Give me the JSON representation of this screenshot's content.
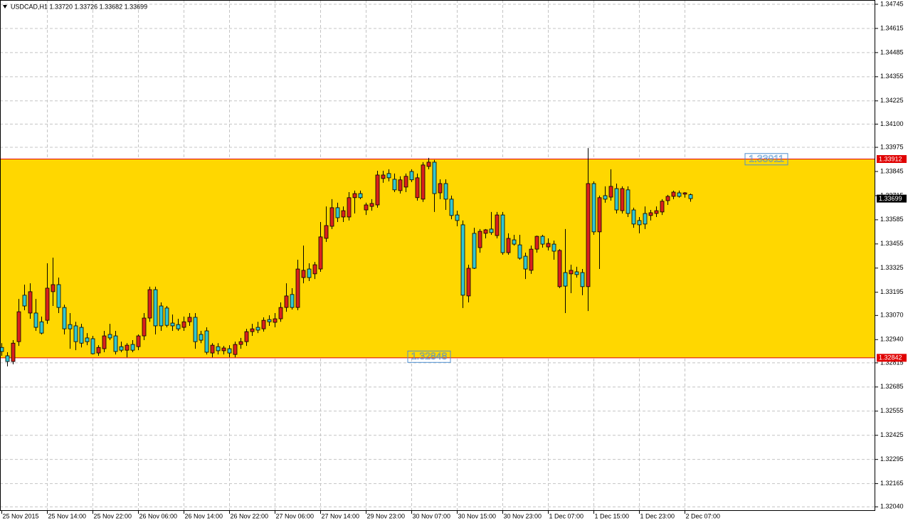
{
  "chart_data": {
    "type": "candlestick",
    "title": "USDCAD,H1  1.33720 1.33726 1.33682 1.33699",
    "up_color": "#d9211c",
    "down_color": "#33c6cf",
    "wick_color": "#000000",
    "grid": true,
    "zone": {
      "from": 1.32842,
      "to": 1.33912,
      "color": "#ffd700",
      "line_color": "#e00000"
    },
    "level_labels": [
      1.33911,
      1.32848
    ],
    "price_tags": [
      {
        "value": 1.33912,
        "color": "#e00000"
      },
      {
        "value": 1.33699,
        "color": "#000000"
      },
      {
        "value": 1.32842,
        "color": "#e00000"
      }
    ],
    "xlim": [
      -0.25,
      153.5
    ],
    "xticks": [
      {
        "value": 0,
        "label": "25 Nov 2015"
      },
      {
        "value": 8,
        "label": "25 Nov 14:00"
      },
      {
        "value": 16,
        "label": "25 Nov 22:00"
      },
      {
        "value": 24,
        "label": "26 Nov 06:00"
      },
      {
        "value": 32,
        "label": "26 Nov 14:00"
      },
      {
        "value": 40,
        "label": "26 Nov 22:00"
      },
      {
        "value": 48,
        "label": "27 Nov 06:00"
      },
      {
        "value": 56,
        "label": "27 Nov 14:00"
      },
      {
        "value": 64,
        "label": "29 Nov 23:00"
      },
      {
        "value": 72,
        "label": "30 Nov 07:00"
      },
      {
        "value": 80,
        "label": "30 Nov 15:00"
      },
      {
        "value": 88,
        "label": "30 Nov 23:00"
      },
      {
        "value": 96,
        "label": "1 Dec 07:00"
      },
      {
        "value": 104,
        "label": "1 Dec 15:00"
      },
      {
        "value": 112,
        "label": "1 Dec 23:00"
      },
      {
        "value": 120,
        "label": "2 Dec 07:00"
      }
    ],
    "ylim": [
      1.32018,
      1.34768
    ],
    "yticks": [
      1.34745,
      1.34615,
      1.34485,
      1.34355,
      1.34225,
      {
        "value": 1.341,
        "label": "1.34100"
      },
      1.33975,
      1.33845,
      1.33715,
      1.33585,
      1.33455,
      1.33325,
      1.33195,
      {
        "value": 1.3307,
        "label": "1.33070"
      },
      {
        "value": 1.3294,
        "label": "1.32940"
      },
      1.32815,
      1.32685,
      1.32555,
      1.32425,
      1.32295,
      1.32165,
      {
        "value": 1.3204,
        "label": "1.32040"
      }
    ],
    "open": [
      1.32898,
      1.32853,
      1.32822,
      1.32929,
      1.33179,
      1.33083,
      1.33083,
      1.33036,
      1.33044,
      1.33198,
      1.33236,
      1.33113,
      1.33021,
      1.33014,
      1.33006,
      1.32949,
      1.32945,
      1.32868,
      1.32891,
      1.32968,
      1.3296,
      1.32902,
      1.32883,
      1.32914,
      1.32902,
      1.3296,
      1.33056,
      1.33209,
      1.33121,
      1.3311,
      1.33029,
      1.33021,
      1.33006,
      1.33036,
      1.3306,
      1.32968,
      1.32987,
      1.32868,
      1.32902,
      1.3288,
      1.32891,
      1.3286,
      1.32914,
      1.32929,
      1.32983,
      1.33006,
      1.32998,
      1.33048,
      1.33033,
      1.33052,
      1.33113,
      1.33183,
      1.33113,
      1.33274,
      1.3332,
      1.33294,
      1.3332,
      1.33485,
      1.3355,
      1.3365,
      1.336,
      1.336,
      1.33704,
      1.33726,
      1.33638,
      1.33657,
      1.33665,
      1.33807,
      1.33834,
      1.33803,
      1.33742,
      1.33761,
      1.33845,
      1.33704,
      1.33696,
      1.33872,
      1.33895,
      1.3373,
      1.3378,
      1.33696,
      1.33611,
      1.33558,
      1.33175,
      1.33512,
      1.33435,
      1.33512,
      1.33535,
      1.335,
      1.33611,
      1.33408,
      1.33477,
      1.3345,
      1.33389,
      1.33313,
      1.33427,
      1.33496,
      1.33439,
      1.33454,
      1.33225,
      1.33301,
      1.33294,
      1.33305,
      1.33301,
      1.33225,
      1.3378,
      1.3352,
      1.33715,
      1.33707,
      1.33753,
      1.33634,
      1.33746,
      1.33638,
      1.33581,
      1.33619,
      1.33608,
      1.33619,
      1.33627,
      1.33688,
      1.33711,
      1.3373,
      1.33723,
      1.3372
    ],
    "high": [
      1.32921,
      1.32872,
      1.32937,
      1.33159,
      1.33236,
      1.33243,
      1.33159,
      1.33064,
      1.33351,
      1.33381,
      1.33274,
      1.33128,
      1.33083,
      1.33036,
      1.33025,
      1.32975,
      1.3296,
      1.3291,
      1.32987,
      1.33025,
      1.32987,
      1.32929,
      1.32921,
      1.32937,
      1.32968,
      1.33083,
      1.33225,
      1.33225,
      1.3314,
      1.33121,
      1.33075,
      1.33052,
      1.33064,
      1.33083,
      1.33083,
      1.32987,
      1.33006,
      1.32921,
      1.32921,
      1.32906,
      1.3291,
      1.32929,
      1.32949,
      1.32998,
      1.33025,
      1.33036,
      1.3306,
      1.33071,
      1.33083,
      1.3314,
      1.33243,
      1.33217,
      1.3337,
      1.33446,
      1.33351,
      1.33358,
      1.33573,
      1.33657,
      1.33696,
      1.33677,
      1.33657,
      1.33734,
      1.33742,
      1.33742,
      1.33677,
      1.33696,
      1.33849,
      1.33849,
      1.33857,
      1.33834,
      1.33819,
      1.33834,
      1.33857,
      1.33834,
      1.33895,
      1.33918,
      1.33907,
      1.33803,
      1.33803,
      1.33715,
      1.33634,
      1.33581,
      1.33343,
      1.33542,
      1.33535,
      1.33535,
      1.33627,
      1.33627,
      1.33627,
      1.33512,
      1.33504,
      1.33504,
      1.33408,
      1.33446,
      1.335,
      1.33504,
      1.33485,
      1.33473,
      1.33427,
      1.33535,
      1.33343,
      1.33332,
      1.3332,
      1.33971,
      1.33792,
      1.33715,
      1.33765,
      1.33857,
      1.3378,
      1.33765,
      1.33765,
      1.3365,
      1.336,
      1.33657,
      1.33638,
      1.33657,
      1.33696,
      1.33719,
      1.33742,
      1.33742,
      1.33734,
      1.33726
    ],
    "low": [
      1.32853,
      1.32796,
      1.32807,
      1.32906,
      1.33098,
      1.33052,
      1.32987,
      1.32968,
      1.33025,
      1.33121,
      1.33083,
      1.32968,
      1.32891,
      1.32883,
      1.32898,
      1.3291,
      1.3286,
      1.32853,
      1.32872,
      1.32937,
      1.3286,
      1.32872,
      1.32845,
      1.32872,
      1.32883,
      1.32937,
      1.33036,
      1.32968,
      1.32987,
      1.33006,
      1.32987,
      1.32987,
      1.32987,
      1.33014,
      1.32891,
      1.32921,
      1.3286,
      1.32845,
      1.3286,
      1.3286,
      1.32845,
      1.32845,
      1.32891,
      1.32906,
      1.3296,
      1.32975,
      1.32983,
      1.33014,
      1.33006,
      1.33036,
      1.3309,
      1.33102,
      1.33098,
      1.33243,
      1.33255,
      1.33266,
      1.33305,
      1.33466,
      1.33535,
      1.33573,
      1.33573,
      1.33581,
      1.33619,
      1.33696,
      1.33611,
      1.33634,
      1.3365,
      1.33784,
      1.33792,
      1.33734,
      1.33726,
      1.33734,
      1.33788,
      1.33688,
      1.33681,
      1.33857,
      1.33627,
      1.33696,
      1.33638,
      1.33588,
      1.3355,
      1.3311,
      1.3314,
      1.3332,
      1.33408,
      1.33485,
      1.33504,
      1.33485,
      1.33397,
      1.33397,
      1.33446,
      1.3337,
      1.33266,
      1.33294,
      1.33408,
      1.33435,
      1.3342,
      1.3337,
      1.33217,
      1.33083,
      1.3319,
      1.33274,
      1.33179,
      1.33094,
      1.33504,
      1.3332,
      1.33677,
      1.33688,
      1.33619,
      1.33619,
      1.336,
      1.33542,
      1.33512,
      1.33535,
      1.33581,
      1.336,
      1.33611,
      1.33665,
      1.33696,
      1.33704,
      1.33704,
      1.33682
    ],
    "close": [
      1.32876,
      1.32822,
      1.32921,
      1.3309,
      1.33121,
      1.33198,
      1.33006,
      1.32975,
      1.33217,
      1.33236,
      1.33113,
      1.32998,
      1.32998,
      1.32929,
      1.32921,
      1.32929,
      1.32864,
      1.32898,
      1.3296,
      1.32949,
      1.32876,
      1.32883,
      1.3291,
      1.32883,
      1.3296,
      1.33056,
      1.33209,
      1.33014,
      1.33014,
      1.33017,
      1.33014,
      1.32998,
      1.33036,
      1.3306,
      1.32929,
      1.32937,
      1.32872,
      1.3291,
      1.3288,
      1.32895,
      1.32868,
      1.32914,
      1.32929,
      1.32983,
      1.32998,
      1.32991,
      1.33044,
      1.33036,
      1.33052,
      1.33113,
      1.33175,
      1.33113,
      1.3332,
      1.33313,
      1.33274,
      1.33343,
      1.33493,
      1.33554,
      1.3365,
      1.33596,
      1.33634,
      1.33704,
      1.33726,
      1.33704,
      1.33665,
      1.33673,
      1.33826,
      1.33826,
      1.33811,
      1.33746,
      1.338,
      1.33819,
      1.338,
      1.33811,
      1.3388,
      1.33895,
      1.33726,
      1.3378,
      1.33696,
      1.33608,
      1.33581,
      1.33179,
      1.33324,
      1.33324,
      1.33523,
      1.33531,
      1.33516,
      1.33611,
      1.33408,
      1.33485,
      1.33454,
      1.33378,
      1.3332,
      1.33427,
      1.33496,
      1.33454,
      1.33458,
      1.33416,
      1.3342,
      1.33228,
      1.33313,
      1.3329,
      1.33225,
      1.3378,
      1.3352,
      1.33704,
      1.33696,
      1.33765,
      1.33638,
      1.33753,
      1.33619,
      1.33562,
      1.33558,
      1.33562,
      1.33623,
      1.33634,
      1.33685,
      1.33711,
      1.33734,
      1.33711,
      1.3373,
      1.33699
    ]
  }
}
